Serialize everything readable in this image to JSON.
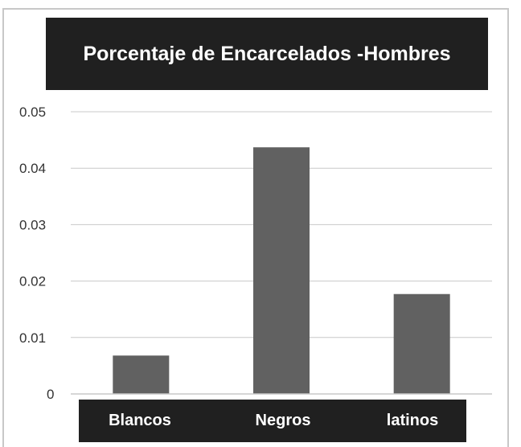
{
  "chart_data": {
    "type": "bar",
    "title": "Porcentaje de Encarcelados -Hombres",
    "categories": [
      "Blancos",
      "Negros",
      "latinos"
    ],
    "values": [
      0.0068,
      0.0437,
      0.0177
    ],
    "ylim": [
      0,
      0.05
    ],
    "yticks": [
      "0",
      "0.01",
      "0.02",
      "0.03",
      "0.04",
      "0.05"
    ],
    "xlabel": "",
    "ylabel": "",
    "grid": true,
    "colors": {
      "bar": "#616161",
      "grid": "#c8c8c8",
      "label_bg": "#202020",
      "label_text": "#ffffff"
    }
  }
}
